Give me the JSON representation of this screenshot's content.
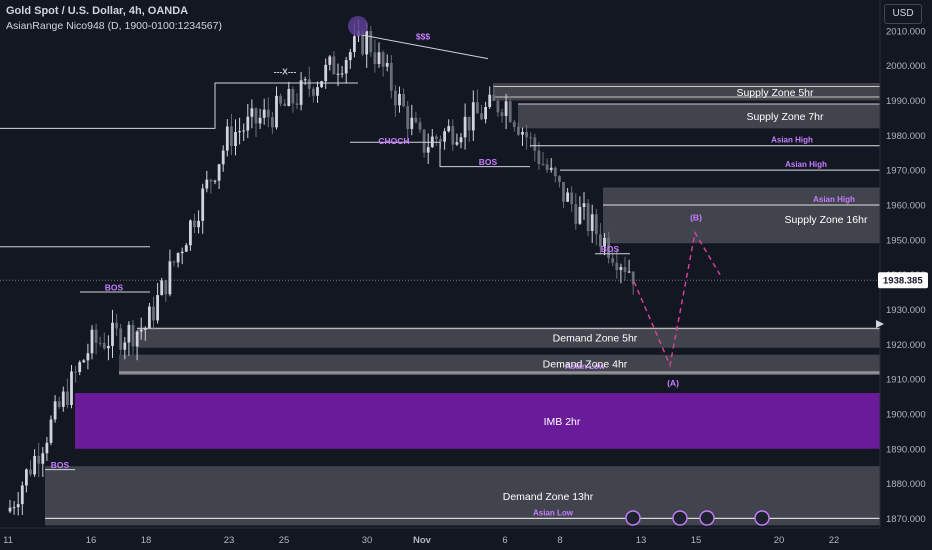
{
  "header": {
    "title": "Gold Spot / U.S. Dollar, 4h, OANDA",
    "indicator": "AsianRange Nico948 (D, 1900-0100:1234567)",
    "currency": "USD"
  },
  "colors": {
    "background": "#131722",
    "bull": "#d1d4dc",
    "bear": "#6a6d78",
    "zone": "#4a4c55",
    "imb": "#6a1b9a",
    "label_purple": "#c77dff",
    "projection": "#e040a0"
  },
  "chart_data": {
    "type": "candlestick",
    "symbol": "Gold Spot / U.S. Dollar",
    "timeframe": "4h",
    "ylim": [
      1866,
      2012
    ],
    "y_ticks": [
      1870,
      1880,
      1890,
      1900,
      1910,
      1920,
      1930,
      1940,
      1950,
      1960,
      1970,
      1980,
      1990,
      2000,
      2010
    ],
    "x_ticks": [
      "11",
      "16",
      "18",
      "23",
      "25",
      "30",
      "Nov",
      "6",
      "8",
      "13",
      "15",
      "20",
      "22"
    ],
    "last_price": "1938.385",
    "close_path": [
      [
        "11",
        1872
      ],
      [
        "16",
        1920
      ],
      [
        "18",
        1925
      ],
      [
        "23",
        1980
      ],
      [
        "25",
        1988
      ],
      [
        "30",
        2008
      ],
      [
        "Nov",
        1977
      ],
      [
        "6",
        1990
      ],
      [
        "8",
        1964
      ],
      [
        "13",
        1938
      ]
    ],
    "zones": [
      {
        "label": "Supply Zone 5hr",
        "top": 1995,
        "bottom": 1990
      },
      {
        "label": "Supply Zone 7hr",
        "top": 1989,
        "bottom": 1982
      },
      {
        "label": "Supply Zone 16hr",
        "top": 1965,
        "bottom": 1949
      },
      {
        "label": "Demand Zone 5hr",
        "top": 1925,
        "bottom": 1919
      },
      {
        "label": "Demand Zone 4hr",
        "top": 1917,
        "bottom": 1912
      },
      {
        "label": "IMB 2hr",
        "top": 1906,
        "bottom": 1890
      },
      {
        "label": "Demand Zone 13hr",
        "top": 1885,
        "bottom": 1868
      }
    ],
    "levels": [
      {
        "label": "Asian High",
        "value": 1977
      },
      {
        "label": "Asian High",
        "value": 1970
      },
      {
        "label": "Asian High",
        "value": 1960
      },
      {
        "label": "Asian Low",
        "value": 1912
      },
      {
        "label": "Asian Low",
        "value": 1870
      }
    ],
    "annotations": [
      "BOS",
      "BOS",
      "BOS",
      "BOS",
      "CHOCH",
      "---X---",
      "$$$",
      "(A)",
      "(B)"
    ],
    "projection_path": [
      [
        1938,
        "13"
      ],
      [
        1914,
        "14"
      ],
      [
        1952,
        "15"
      ],
      [
        1940,
        "16"
      ]
    ]
  }
}
